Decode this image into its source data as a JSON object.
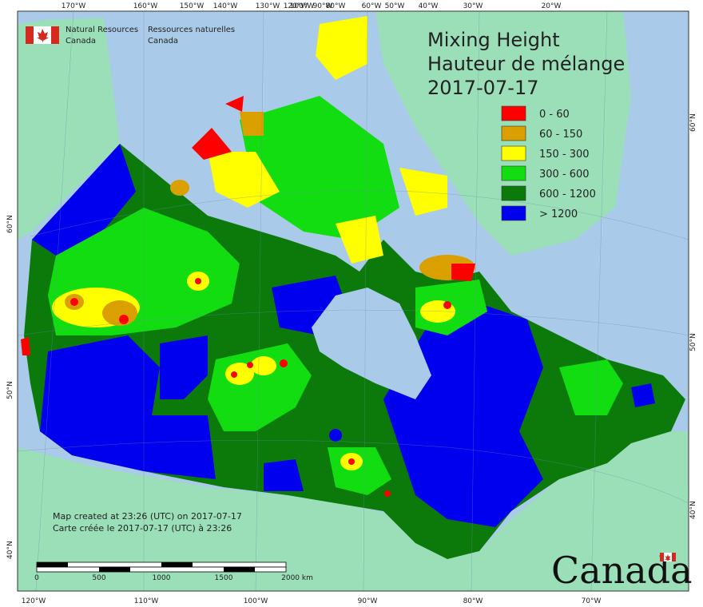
{
  "header": {
    "agency_en_line1": "Natural Resources",
    "agency_en_line2": "Canada",
    "agency_fr_line1": "Ressources naturelles",
    "agency_fr_line2": "Canada"
  },
  "title": {
    "line1": "Mixing Height",
    "line2": "Hauteur de mélange",
    "line3": "2017-07-17"
  },
  "legend": [
    {
      "label": "0 - 60",
      "color": "#ff0000"
    },
    {
      "label": "60 - 150",
      "color": "#d9a000"
    },
    {
      "label": "150 - 300",
      "color": "#ffff00"
    },
    {
      "label": "300 - 600",
      "color": "#11dd11"
    },
    {
      "label": "600 - 1200",
      "color": "#0b7a0b"
    },
    {
      "label": "> 1200",
      "color": "#0000ee"
    }
  ],
  "top_ticks": [
    "170°W",
    "160°W",
    "150°W",
    "140°W",
    "130°W",
    "120°W",
    "100°W",
    "90°W",
    "80°W",
    "60°W",
    "50°W",
    "40°W",
    "30°W",
    "20°W"
  ],
  "bottom_ticks": [
    "120°W",
    "110°W",
    "100°W",
    "90°W",
    "80°W",
    "70°W"
  ],
  "left_ticks": [
    "60°N",
    "50°N",
    "40°N"
  ],
  "right_ticks": [
    "60°N",
    "50°N",
    "40°N"
  ],
  "footer": {
    "line1": "Map created at 23:26 (UTC) on 2017-07-17",
    "line2": "Carte créée le 2017-07-17 (UTC) à 23:26"
  },
  "scale_bar": {
    "labels": [
      "0",
      "500",
      "1000",
      "1500",
      "2000  km"
    ]
  },
  "wordmark": "Canada",
  "colors": {
    "ocean": "#a9cbe9",
    "land_other": "#9adfb8",
    "red": "#ff0000",
    "orange": "#d9a000",
    "yellow": "#ffff00",
    "light_green": "#11dd11",
    "dark_green": "#0b7a0b",
    "blue": "#0000ee"
  }
}
